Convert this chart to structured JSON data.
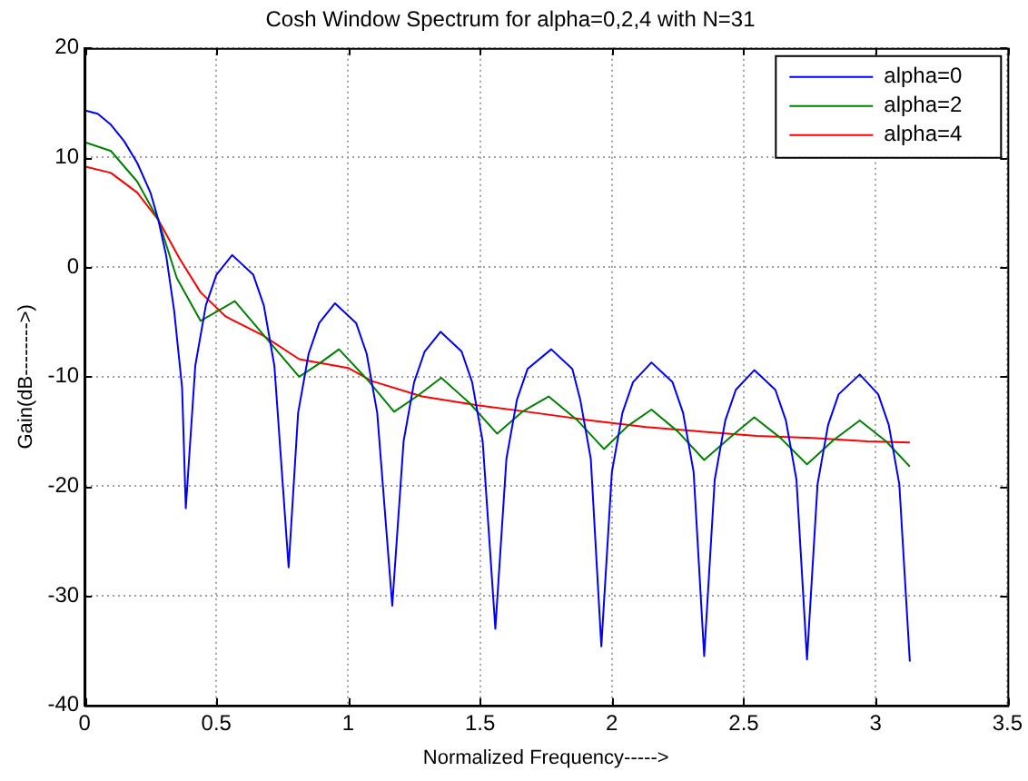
{
  "chart_data": {
    "type": "line",
    "title": "Cosh Window Spectrum for alpha=0,2,4 with N=31",
    "xlabel": "Normalized Frequency----->",
    "ylabel": "Gain(dB-------->)",
    "xlim": [
      0,
      3.5
    ],
    "xticks": [
      0,
      0.5,
      1,
      1.5,
      2,
      2.5,
      3,
      3.5
    ],
    "ylim": [
      -40,
      20
    ],
    "yticks": [
      -40,
      -30,
      -20,
      -10,
      0,
      10,
      20
    ],
    "grid": true,
    "legend": "top right",
    "marker": "none",
    "line_style": "solid",
    "series": [
      {
        "name": "alpha=0",
        "color": "#0000ff",
        "x": [
          0,
          0.05,
          0.1,
          0.15,
          0.2,
          0.25,
          0.28,
          0.31,
          0.34,
          0.37,
          0.384,
          0.42,
          0.46,
          0.5,
          0.56,
          0.64,
          0.68,
          0.72,
          0.774,
          0.81,
          0.85,
          0.89,
          0.95,
          1.03,
          1.07,
          1.11,
          1.167,
          1.21,
          1.25,
          1.29,
          1.35,
          1.43,
          1.47,
          1.51,
          1.558,
          1.6,
          1.64,
          1.68,
          1.77,
          1.85,
          1.88,
          1.92,
          1.96,
          2.0,
          2.04,
          2.08,
          2.15,
          2.23,
          2.27,
          2.31,
          2.35,
          2.39,
          2.43,
          2.47,
          2.54,
          2.62,
          2.66,
          2.7,
          2.74,
          2.78,
          2.82,
          2.86,
          2.94,
          3.01,
          3.05,
          3.09,
          3.13
        ],
        "values": [
          14.3,
          14,
          13,
          11.5,
          9.5,
          6.8,
          4.3,
          1,
          -4,
          -11,
          -22,
          -9,
          -3.5,
          -0.7,
          1.1,
          -0.7,
          -3.5,
          -9,
          -27.4,
          -13.3,
          -7.9,
          -5.1,
          -3.3,
          -5.1,
          -7.9,
          -13.3,
          -30.9,
          -15.9,
          -10.5,
          -7.7,
          -5.9,
          -7.7,
          -10.5,
          -15.9,
          -33,
          -17.5,
          -12.1,
          -9.3,
          -7.5,
          -9.3,
          -12.1,
          -17.5,
          -34.6,
          -18.7,
          -13.3,
          -10.5,
          -8.7,
          -10.5,
          -13.3,
          -18.7,
          -35.5,
          -19.4,
          -14,
          -11.2,
          -9.4,
          -11.2,
          -14,
          -19.4,
          -35.8,
          -19.8,
          -14.4,
          -11.6,
          -9.8,
          -11.6,
          -14.4,
          -19.8,
          -36
        ]
      },
      {
        "name": "alpha=2",
        "color": "#008000",
        "x": [
          0,
          0.1,
          0.2,
          0.28,
          0.35,
          0.44,
          0.57,
          0.69,
          0.814,
          0.89,
          0.965,
          1.07,
          1.174,
          1.26,
          1.353,
          1.46,
          1.565,
          1.66,
          1.76,
          1.87,
          1.97,
          2.06,
          2.15,
          2.25,
          2.35,
          2.45,
          2.54,
          2.64,
          2.74,
          2.84,
          2.94,
          3.04,
          3.13
        ],
        "values": [
          11.4,
          10.6,
          7.8,
          4.3,
          -1,
          -4.9,
          -3.1,
          -6.5,
          -10,
          -8.8,
          -7.5,
          -10.2,
          -13.2,
          -11.8,
          -10.1,
          -12.4,
          -15.2,
          -13.2,
          -11.8,
          -14,
          -16.6,
          -14.5,
          -13,
          -15,
          -17.6,
          -15.5,
          -13.7,
          -15.6,
          -18,
          -15.8,
          -14,
          -15.9,
          -18.2
        ]
      },
      {
        "name": "alpha=4",
        "color": "#ff0000",
        "x": [
          0,
          0.1,
          0.2,
          0.28,
          0.36,
          0.44,
          0.535,
          0.674,
          0.814,
          1.0,
          1.09,
          1.28,
          1.49,
          1.71,
          1.92,
          2.13,
          2.34,
          2.55,
          2.76,
          2.97,
          3.13
        ],
        "values": [
          9.2,
          8.6,
          6.8,
          4.3,
          0.8,
          -2.3,
          -4.5,
          -6.2,
          -8.4,
          -9.2,
          -10.4,
          -11.8,
          -12.6,
          -13.3,
          -14,
          -14.6,
          -15,
          -15.4,
          -15.6,
          -15.9,
          -16
        ]
      }
    ]
  }
}
